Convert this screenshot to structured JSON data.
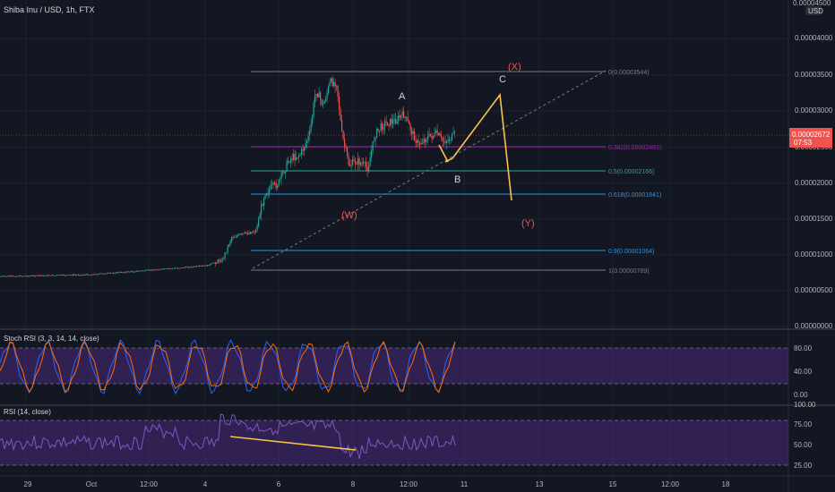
{
  "header": {
    "title": "Shiba Inu / USD, 1h, FTX",
    "currency_badge_top": "0.00004500",
    "currency_badge_unit": "USD"
  },
  "colors": {
    "background": "#131722",
    "candle_up": "#26a69a",
    "candle_down": "#ef5350",
    "price_badge": "#ef5350",
    "fib_purple": "#9c27b0",
    "fib_teal": "#26a69a",
    "fib_blue": "#2196f3",
    "fib_gray": "#787b86",
    "wave_path": "#f9c24b",
    "wave_red": "#ef5350",
    "wave_white": "#d1d4dc",
    "stoch_k": "#2962ff",
    "stoch_d": "#ff6d00",
    "rsi_line": "#7e57c2",
    "band_fill": "#4a2a7a"
  },
  "price_axis": {
    "labels": [
      "0.00004000",
      "0.00003500",
      "0.00003000",
      "0.00002500",
      "0.00002000",
      "0.00001500",
      "0.00001000",
      "0.00000500",
      "0.00000000"
    ],
    "current_price": "0.00002672",
    "countdown": "07:53"
  },
  "fib_levels": [
    {
      "label": "0(0.00003544)",
      "color": "#787b86"
    },
    {
      "label": "0.382(0.00002491)",
      "color": "#9c27b0"
    },
    {
      "label": "0.5(0.00002166)",
      "color": "#26a69a"
    },
    {
      "label": "0.618(0.00001841)",
      "color": "#2196f3"
    },
    {
      "label": "0.9(0.00001064)",
      "color": "#2196f3"
    },
    {
      "label": "1(0.00000789)",
      "color": "#787b86"
    }
  ],
  "wave_labels": {
    "x": "(X)",
    "c": "C",
    "a": "A",
    "b": "B",
    "w": "(W)",
    "y": "(Y)"
  },
  "stoch_rsi": {
    "title": "Stoch RSI (3, 3, 14, 14, close)",
    "axis": [
      "80.00",
      "40.00",
      "0.00"
    ]
  },
  "rsi": {
    "title": "RSI (14, close)",
    "axis": [
      "100.00",
      "75.00",
      "50.00",
      "25.00"
    ]
  },
  "time_axis": [
    "29",
    "Oct",
    "12:00",
    "4",
    "6",
    "8",
    "12:00",
    "11",
    "13",
    "15",
    "12:00",
    "18"
  ]
}
